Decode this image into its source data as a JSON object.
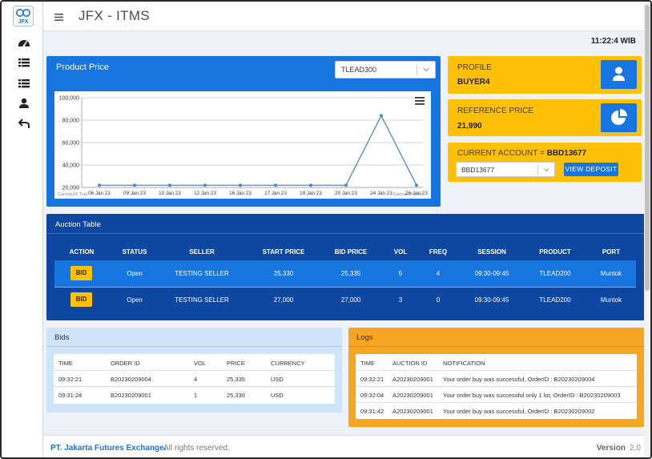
{
  "app": {
    "title": "JFX - ITMS",
    "logo_text": "JFX",
    "clock": "11:22:4 WIB"
  },
  "sidebar": {
    "items": [
      {
        "icon": "dashboard-icon"
      },
      {
        "icon": "list-icon"
      },
      {
        "icon": "list-icon"
      },
      {
        "icon": "user-icon"
      },
      {
        "icon": "back-icon"
      }
    ]
  },
  "product_price": {
    "title": "Product Price",
    "selected_product": "TLEAD300",
    "watermark_left": "CanvasJS Trial",
    "watermark_right": "CanvasJS.com"
  },
  "chart_data": {
    "type": "line",
    "x": [
      "06 Jan 23",
      "09 Jan 23",
      "10 Jan 23",
      "12 Jan 23",
      "16 Jan 23",
      "17 Jan 23",
      "19 Jan 23",
      "20 Jan 23",
      "24 Jan 23",
      "26 Jan 23"
    ],
    "series": [
      {
        "values": [
          21990,
          21990,
          21990,
          21990,
          21990,
          21990,
          21990,
          21990,
          84000,
          21990
        ]
      }
    ],
    "ylim": [
      20000,
      100000
    ],
    "yticks": [
      "20,000",
      "40,000",
      "60,000",
      "80,000",
      "100,000"
    ],
    "grid": true,
    "color": "#4a8ac8"
  },
  "profile": {
    "label": "PROFILE",
    "value": "BUYER4",
    "icon": "user-icon"
  },
  "reference_price": {
    "label": "REFERENCE PRICE",
    "value": "21,990",
    "icon": "pie-chart-icon"
  },
  "current_account": {
    "label": "CURRENT ACCOUNT =",
    "value": "BBD13677",
    "selected": "BBD13677",
    "button": "VIEW DEPOSIT"
  },
  "auction": {
    "title": "Auction Table",
    "headers": [
      "ACTION",
      "STATUS",
      "SELLER",
      "START PRICE",
      "BID PRICE",
      "VOL",
      "FREQ",
      "SESSION",
      "PRODUCT",
      "PORT"
    ],
    "rows": [
      {
        "action": "BID",
        "status": "Open",
        "seller": "TESTING SELLER",
        "start_price": "25,330",
        "bid_price": "25,335",
        "vol": "5",
        "freq": "4",
        "session": "09:30-09:45",
        "product": "TLEAD200",
        "port": "Muntok"
      },
      {
        "action": "BID",
        "status": "Open",
        "seller": "TESTING SELLER",
        "start_price": "27,000",
        "bid_price": "27,000",
        "vol": "3",
        "freq": "0",
        "session": "09:30-09:45",
        "product": "TLEAD200",
        "port": "Muntok"
      }
    ]
  },
  "bids": {
    "title": "Bids",
    "headers": [
      "TIME",
      "ORDER ID",
      "VOL",
      "PRICE",
      "CURRENCY"
    ],
    "rows": [
      {
        "time": "09:32:21",
        "order_id": "B20230209004",
        "vol": "4",
        "price": "25,335",
        "currency": "USD"
      },
      {
        "time": "09:31:24",
        "order_id": "B20230209001",
        "vol": "1",
        "price": "25,330",
        "currency": "USD"
      }
    ]
  },
  "logs": {
    "title": "Logs",
    "headers": [
      "TIME",
      "AUCTION ID",
      "NOTIFICATION"
    ],
    "rows": [
      {
        "time": "09:32:21",
        "auction_id": "A20230209001",
        "notification": "Your order buy was successful, OrderID : B20230209004"
      },
      {
        "time": "09:32:04",
        "auction_id": "A20230209001",
        "notification": "Your order buy was successful only 1 lot, OrderID : B20230209003"
      },
      {
        "time": "09:31:42",
        "auction_id": "A20230209001",
        "notification": "Your order buy was successful, OrderID : B20230209002"
      }
    ]
  },
  "footer": {
    "company": "PT. Jakarta Futures Exchange.",
    "rights": "All rights reserved.",
    "version_label": "Version",
    "version": "2.0"
  }
}
